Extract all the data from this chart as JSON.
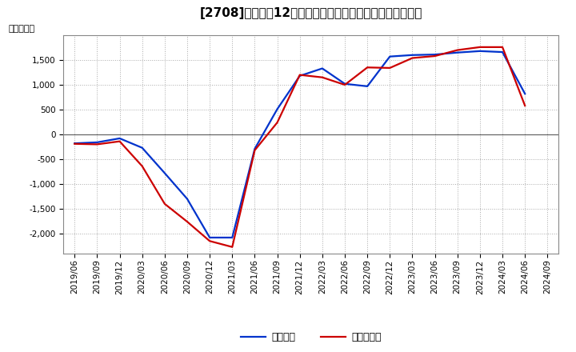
{
  "title": "[2708]　利益の12か月移動合計の対前年同期増減額の推移",
  "ylabel": "（百万円）",
  "background_color": "#ffffff",
  "plot_background": "#ffffff",
  "grid_color": "#aaaaaa",
  "x_labels": [
    "2019/06",
    "2019/09",
    "2019/12",
    "2020/03",
    "2020/06",
    "2020/09",
    "2020/12",
    "2021/03",
    "2021/06",
    "2021/09",
    "2021/12",
    "2022/03",
    "2022/06",
    "2022/09",
    "2022/12",
    "2023/03",
    "2023/06",
    "2023/09",
    "2023/12",
    "2024/03",
    "2024/06",
    "2024/09"
  ],
  "keijo_rieki": [
    -180,
    -160,
    -80,
    -270,
    -780,
    -1300,
    -2080,
    -2080,
    -290,
    510,
    1180,
    1330,
    1020,
    970,
    1570,
    1600,
    1610,
    1650,
    1680,
    1660,
    820,
    null
  ],
  "touki_jun_rieki": [
    -190,
    -200,
    -140,
    -640,
    -1400,
    -1760,
    -2150,
    -2270,
    -320,
    240,
    1200,
    1150,
    1000,
    1350,
    1340,
    1540,
    1580,
    1700,
    1760,
    1760,
    580,
    null
  ],
  "keijo_color": "#0033cc",
  "touki_color": "#cc0000",
  "ylim": [
    -2400,
    2000
  ],
  "yticks": [
    -2000,
    -1500,
    -1000,
    -500,
    0,
    500,
    1000,
    1500
  ],
  "line_width": 1.6,
  "title_fontsize": 11,
  "legend_fontsize": 9,
  "tick_fontsize": 7.5,
  "ylabel_fontsize": 8
}
